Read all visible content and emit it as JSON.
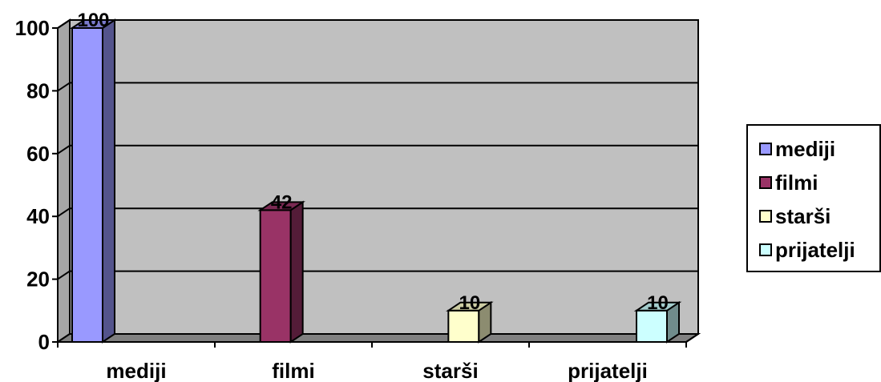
{
  "chart_data": {
    "type": "bar",
    "categories": [
      "mediji",
      "filmi",
      "starši",
      "prijatelji"
    ],
    "values": [
      100,
      42,
      10,
      10
    ],
    "data_labels": [
      "100",
      "42",
      "10",
      "10"
    ],
    "colors": [
      "#9999ff",
      "#993366",
      "#ffffcc",
      "#ccffff"
    ],
    "yticks": [
      "0",
      "20",
      "40",
      "60",
      "80",
      "100"
    ],
    "ylim": [
      0,
      100
    ],
    "plot_background": "#c0c0c0",
    "grid": true,
    "legend_position": "right",
    "style": "3d-column"
  },
  "legend": {
    "items": [
      {
        "label": "mediji",
        "color": "#9999ff"
      },
      {
        "label": "filmi",
        "color": "#993366"
      },
      {
        "label": "starši",
        "color": "#ffffcc"
      },
      {
        "label": "prijatelji",
        "color": "#ccffff"
      }
    ]
  }
}
